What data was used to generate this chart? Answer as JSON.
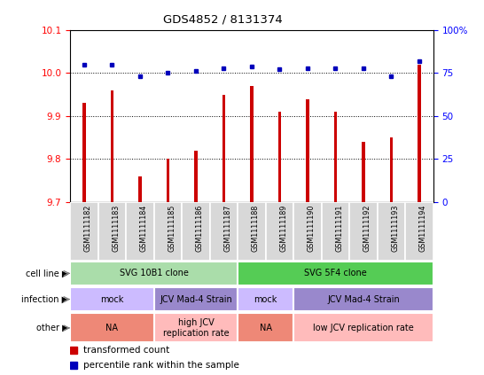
{
  "title": "GDS4852 / 8131374",
  "samples": [
    "GSM1111182",
    "GSM1111183",
    "GSM1111184",
    "GSM1111185",
    "GSM1111186",
    "GSM1111187",
    "GSM1111188",
    "GSM1111189",
    "GSM1111190",
    "GSM1111191",
    "GSM1111192",
    "GSM1111193",
    "GSM1111194"
  ],
  "red_values": [
    9.93,
    9.96,
    9.76,
    9.8,
    9.82,
    9.95,
    9.97,
    9.91,
    9.94,
    9.91,
    9.84,
    9.85,
    10.02
  ],
  "blue_values": [
    80,
    80,
    73,
    75,
    76,
    78,
    79,
    77,
    78,
    78,
    78,
    73,
    82
  ],
  "ylim_left": [
    9.7,
    10.1
  ],
  "ylim_right": [
    0,
    100
  ],
  "yticks_left": [
    9.7,
    9.8,
    9.9,
    10.0,
    10.1
  ],
  "yticks_right": [
    0,
    25,
    50,
    75,
    100
  ],
  "bar_color": "#cc0000",
  "dot_color": "#0000bb",
  "cell_line_row": [
    {
      "label": "SVG 10B1 clone",
      "start": 0,
      "end": 6,
      "color": "#aaddaa"
    },
    {
      "label": "SVG 5F4 clone",
      "start": 6,
      "end": 13,
      "color": "#55cc55"
    }
  ],
  "infection_row": [
    {
      "label": "mock",
      "start": 0,
      "end": 3,
      "color": "#ccbbff"
    },
    {
      "label": "JCV Mad-4 Strain",
      "start": 3,
      "end": 6,
      "color": "#9988cc"
    },
    {
      "label": "mock",
      "start": 6,
      "end": 8,
      "color": "#ccbbff"
    },
    {
      "label": "JCV Mad-4 Strain",
      "start": 8,
      "end": 13,
      "color": "#9988cc"
    }
  ],
  "other_row": [
    {
      "label": "NA",
      "start": 0,
      "end": 3,
      "color": "#ee8877"
    },
    {
      "label": "high JCV\nreplication rate",
      "start": 3,
      "end": 6,
      "color": "#ffbbbb"
    },
    {
      "label": "NA",
      "start": 6,
      "end": 8,
      "color": "#ee8877"
    },
    {
      "label": "low JCV replication rate",
      "start": 8,
      "end": 13,
      "color": "#ffbbbb"
    }
  ],
  "row_labels": [
    "cell line",
    "infection",
    "other"
  ],
  "legend_items": [
    {
      "color": "#cc0000",
      "label": "transformed count"
    },
    {
      "color": "#0000bb",
      "label": "percentile rank within the sample"
    }
  ],
  "xtick_bg": "#d8d8d8",
  "chart_bg": "#ffffff",
  "bar_width": 0.12
}
